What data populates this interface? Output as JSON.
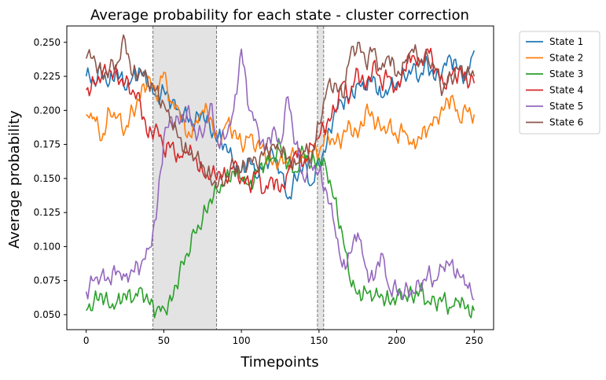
{
  "chart_data": {
    "type": "line",
    "title": "Average probability for each state - cluster correction",
    "xlabel": "Timepoints",
    "ylabel": "Average probability",
    "xlim": [
      -12.5,
      262.5
    ],
    "ylim": [
      0.039,
      0.262
    ],
    "xticks": [
      0,
      50,
      100,
      150,
      200,
      250
    ],
    "yticks": [
      0.05,
      0.075,
      0.1,
      0.125,
      0.15,
      0.175,
      0.2,
      0.225,
      0.25
    ],
    "xtick_labels": [
      "0",
      "50",
      "100",
      "150",
      "200",
      "250"
    ],
    "ytick_labels": [
      "0.050",
      "0.075",
      "0.100",
      "0.125",
      "0.150",
      "0.175",
      "0.200",
      "0.225",
      "0.250"
    ],
    "grid": false,
    "legend_position": "outside upper right",
    "shaded_regions": [
      {
        "x_start": 43,
        "x_end": 84,
        "color": "#e3e3e3",
        "border": "dashed"
      },
      {
        "x_start": 149,
        "x_end": 153,
        "color": "#e3e3e3",
        "border": "dashed"
      }
    ],
    "x_knots": [
      0,
      5,
      10,
      15,
      20,
      25,
      30,
      35,
      40,
      45,
      50,
      55,
      60,
      65,
      70,
      75,
      80,
      85,
      90,
      95,
      100,
      105,
      110,
      115,
      120,
      125,
      130,
      135,
      140,
      145,
      150,
      155,
      160,
      165,
      170,
      175,
      180,
      185,
      190,
      195,
      200,
      205,
      210,
      215,
      220,
      225,
      230,
      235,
      240,
      245,
      250
    ],
    "series": [
      {
        "name": "State 1",
        "color": "#1f77b4",
        "values": [
          0.225,
          0.222,
          0.228,
          0.22,
          0.23,
          0.215,
          0.225,
          0.23,
          0.218,
          0.21,
          0.215,
          0.205,
          0.2,
          0.195,
          0.19,
          0.2,
          0.185,
          0.18,
          0.175,
          0.16,
          0.155,
          0.165,
          0.15,
          0.16,
          0.17,
          0.155,
          0.135,
          0.15,
          0.16,
          0.145,
          0.16,
          0.175,
          0.2,
          0.205,
          0.21,
          0.22,
          0.215,
          0.225,
          0.21,
          0.215,
          0.22,
          0.225,
          0.23,
          0.225,
          0.235,
          0.222,
          0.232,
          0.238,
          0.23,
          0.225,
          0.244
        ]
      },
      {
        "name": "State 2",
        "color": "#ff7f0e",
        "values": [
          0.197,
          0.195,
          0.178,
          0.2,
          0.195,
          0.185,
          0.2,
          0.21,
          0.225,
          0.21,
          0.228,
          0.205,
          0.2,
          0.18,
          0.19,
          0.2,
          0.195,
          0.175,
          0.19,
          0.185,
          0.175,
          0.18,
          0.175,
          0.17,
          0.16,
          0.165,
          0.16,
          0.17,
          0.165,
          0.17,
          0.168,
          0.185,
          0.175,
          0.18,
          0.19,
          0.18,
          0.2,
          0.195,
          0.185,
          0.19,
          0.18,
          0.185,
          0.175,
          0.18,
          0.185,
          0.195,
          0.2,
          0.21,
          0.195,
          0.2,
          0.197
        ]
      },
      {
        "name": "State 3",
        "color": "#2ca02c",
        "values": [
          0.053,
          0.06,
          0.065,
          0.055,
          0.06,
          0.065,
          0.06,
          0.07,
          0.06,
          0.052,
          0.055,
          0.06,
          0.08,
          0.095,
          0.11,
          0.12,
          0.135,
          0.14,
          0.15,
          0.155,
          0.15,
          0.145,
          0.155,
          0.16,
          0.165,
          0.175,
          0.16,
          0.155,
          0.17,
          0.16,
          0.165,
          0.155,
          0.135,
          0.11,
          0.075,
          0.065,
          0.068,
          0.062,
          0.065,
          0.06,
          0.062,
          0.065,
          0.063,
          0.068,
          0.06,
          0.058,
          0.062,
          0.055,
          0.06,
          0.055,
          0.053
        ]
      },
      {
        "name": "State 4",
        "color": "#d62728",
        "values": [
          0.215,
          0.22,
          0.225,
          0.23,
          0.225,
          0.22,
          0.215,
          0.205,
          0.18,
          0.19,
          0.17,
          0.175,
          0.165,
          0.17,
          0.165,
          0.155,
          0.15,
          0.155,
          0.15,
          0.16,
          0.15,
          0.145,
          0.155,
          0.14,
          0.15,
          0.14,
          0.155,
          0.17,
          0.16,
          0.175,
          0.18,
          0.19,
          0.2,
          0.22,
          0.21,
          0.23,
          0.215,
          0.235,
          0.22,
          0.225,
          0.215,
          0.23,
          0.24,
          0.235,
          0.245,
          0.23,
          0.22,
          0.225,
          0.228,
          0.224,
          0.22
        ]
      },
      {
        "name": "State 5",
        "color": "#9467bd",
        "values": [
          0.067,
          0.075,
          0.08,
          0.075,
          0.082,
          0.078,
          0.082,
          0.085,
          0.098,
          0.12,
          0.18,
          0.195,
          0.19,
          0.2,
          0.185,
          0.18,
          0.205,
          0.175,
          0.18,
          0.2,
          0.245,
          0.2,
          0.19,
          0.17,
          0.185,
          0.175,
          0.21,
          0.175,
          0.15,
          0.16,
          0.155,
          0.14,
          0.115,
          0.085,
          0.095,
          0.11,
          0.085,
          0.075,
          0.095,
          0.07,
          0.068,
          0.066,
          0.068,
          0.07,
          0.08,
          0.075,
          0.085,
          0.088,
          0.08,
          0.072,
          0.061
        ]
      },
      {
        "name": "State 6",
        "color": "#8c564b",
        "values": [
          0.238,
          0.24,
          0.225,
          0.23,
          0.235,
          0.252,
          0.225,
          0.23,
          0.22,
          0.215,
          0.205,
          0.19,
          0.18,
          0.17,
          0.165,
          0.16,
          0.15,
          0.145,
          0.15,
          0.16,
          0.155,
          0.165,
          0.16,
          0.17,
          0.175,
          0.17,
          0.165,
          0.16,
          0.17,
          0.165,
          0.19,
          0.215,
          0.22,
          0.21,
          0.24,
          0.25,
          0.235,
          0.245,
          0.23,
          0.24,
          0.225,
          0.235,
          0.245,
          0.235,
          0.24,
          0.23,
          0.215,
          0.225,
          0.23,
          0.228,
          0.225
        ]
      }
    ]
  }
}
